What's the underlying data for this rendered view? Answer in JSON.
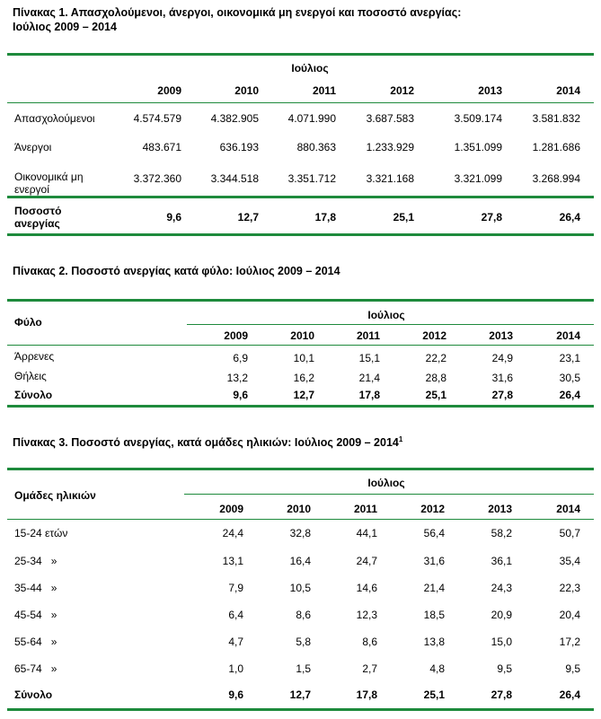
{
  "table1": {
    "title_line1": "Πίνακας 1. Απασχολούμενοι, άνεργοι, οικονομικά μη ενεργοί και ποσοστό ανεργίας:",
    "title_line2": "Ιούλιος 2009 – 2014",
    "header": "Ιούλιος",
    "years": [
      "2009",
      "2010",
      "2011",
      "2012",
      "2013",
      "2014"
    ],
    "rows": [
      {
        "label": "Απασχολούμενοι",
        "values": [
          "4.574.579",
          "4.382.905",
          "4.071.990",
          "3.687.583",
          "3.509.174",
          "3.581.832"
        ]
      },
      {
        "label": "Άνεργοι",
        "values": [
          "483.671",
          "636.193",
          "880.363",
          "1.233.929",
          "1.351.099",
          "1.281.686"
        ]
      },
      {
        "label_line1": "Οικονομικά μη",
        "label_line2": "ενεργοί",
        "values": [
          "3.372.360",
          "3.344.518",
          "3.351.712",
          "3.321.168",
          "3.321.099",
          "3.268.994"
        ]
      }
    ],
    "rate_row": {
      "label_line1": "Ποσοστό",
      "label_line2": "ανεργίας",
      "values": [
        "9,6",
        "12,7",
        "17,8",
        "25,1",
        "27,8",
        "26,4"
      ]
    }
  },
  "table2": {
    "title": "Πίνακας 2. Ποσοστό ανεργίας κατά φύλο: Ιούλιος 2009 – 2014",
    "stub_header": "Φύλο",
    "header": "Ιούλιος",
    "years": [
      "2009",
      "2010",
      "2011",
      "2012",
      "2013",
      "2014"
    ],
    "rows": [
      {
        "label": "Άρρενες",
        "values": [
          "6,9",
          "10,1",
          "15,1",
          "22,2",
          "24,9",
          "23,1"
        ]
      },
      {
        "label": "Θήλεις",
        "values": [
          "13,2",
          "16,2",
          "21,4",
          "28,8",
          "31,6",
          "30,5"
        ]
      },
      {
        "label": "Σύνολο",
        "values": [
          "9,6",
          "12,7",
          "17,8",
          "25,1",
          "27,8",
          "26,4"
        ]
      }
    ]
  },
  "table3": {
    "title": "Πίνακας 3. Ποσοστό ανεργίας, κατά ομάδες ηλικιών: Ιούλιος 2009 – 2014",
    "title_sup": "1",
    "stub_header": "Ομάδες ηλικιών",
    "header": "Ιούλιος",
    "years": [
      "2009",
      "2010",
      "2011",
      "2012",
      "2013",
      "2014"
    ],
    "rows": [
      {
        "label": "15-24 ετών",
        "values": [
          "24,4",
          "32,8",
          "44,1",
          "56,4",
          "58,2",
          "50,7"
        ]
      },
      {
        "label": "25-34   »",
        "values": [
          "13,1",
          "16,4",
          "24,7",
          "31,6",
          "36,1",
          "35,4"
        ]
      },
      {
        "label": "35-44   »",
        "values": [
          "7,9",
          "10,5",
          "14,6",
          "21,4",
          "24,3",
          "22,3"
        ]
      },
      {
        "label": "45-54   »",
        "values": [
          "6,4",
          "8,6",
          "12,3",
          "18,5",
          "20,9",
          "20,4"
        ]
      },
      {
        "label": "55-64   »",
        "values": [
          "4,7",
          "5,8",
          "8,6",
          "13,8",
          "15,0",
          "17,2"
        ]
      },
      {
        "label": "65-74   »",
        "values": [
          "1,0",
          "1,5",
          "2,7",
          "4,8",
          "9,5",
          "9,5"
        ]
      },
      {
        "label": "Σύνολο",
        "values": [
          "9,6",
          "12,7",
          "17,8",
          "25,1",
          "27,8",
          "26,4"
        ]
      }
    ]
  }
}
